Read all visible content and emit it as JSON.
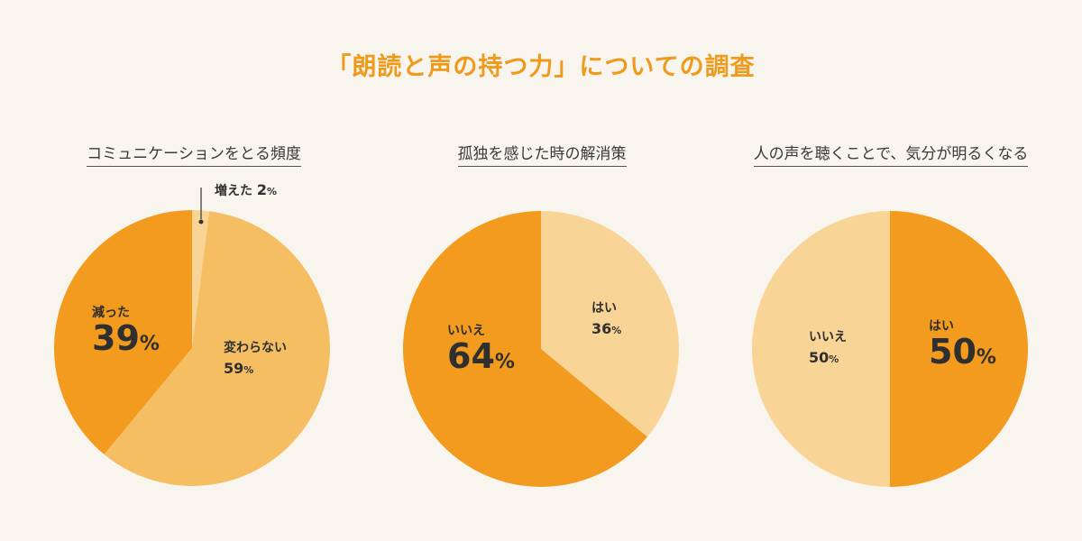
{
  "title": "「朗読と声の持つ力」についての調査",
  "chart_data": [
    {
      "type": "pie",
      "title": "コミュニケーションをとる頻度",
      "slices": [
        {
          "label": "増えた",
          "value": 2,
          "color": "#f8d597"
        },
        {
          "label": "変わらない",
          "value": 59,
          "color": "#f5be62"
        },
        {
          "label": "減った",
          "value": 39,
          "color": "#f29b1f"
        }
      ]
    },
    {
      "type": "pie",
      "title": "孤独を感じた時の解消策",
      "slices": [
        {
          "label": "はい",
          "value": 36,
          "color": "#f8d597"
        },
        {
          "label": "いいえ",
          "value": 64,
          "color": "#f29b1f"
        }
      ]
    },
    {
      "type": "pie",
      "title": "人の声を聴くことで、気分が明るくなる",
      "slices": [
        {
          "label": "はい",
          "value": 50,
          "color": "#f29b1f"
        },
        {
          "label": "いいえ",
          "value": 50,
          "color": "#f8d597"
        }
      ]
    }
  ],
  "labels": {
    "c1_inc_name": "増えた",
    "c1_inc_num": "2",
    "pct": "%",
    "c1_same_name": "変わらない",
    "c1_same_num": "59",
    "c1_dec_name": "減った",
    "c1_dec_num": "39",
    "c2_yes_name": "はい",
    "c2_yes_num": "36",
    "c2_no_name": "いいえ",
    "c2_no_num": "64",
    "c3_yes_name": "はい",
    "c3_yes_num": "50",
    "c3_no_name": "いいえ",
    "c3_no_num": "50"
  }
}
